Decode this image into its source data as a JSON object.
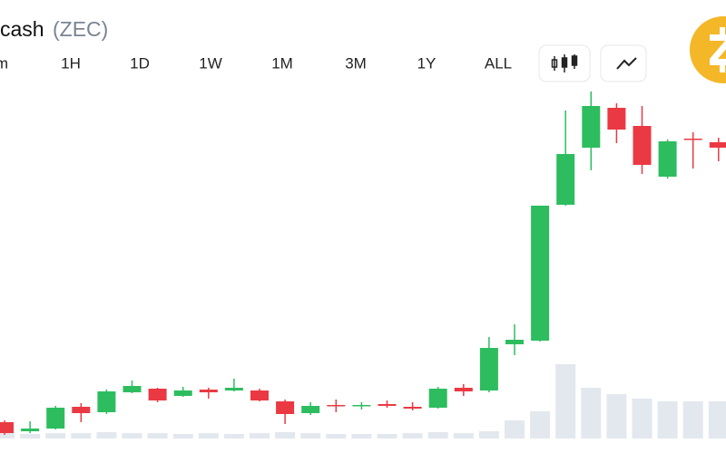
{
  "header": {
    "name": "cash",
    "symbol": "(ZEC)"
  },
  "timeframes": [
    "m",
    "1H",
    "1D",
    "1W",
    "1M",
    "3M",
    "1Y",
    "ALL"
  ],
  "active_timeframe": "1M",
  "chart_data": {
    "type": "candlestick",
    "up_color": "#2dbd5f",
    "down_color": "#ea3943",
    "volume_color": "#e3e8ef",
    "open": [
      14,
      4,
      7,
      31,
      25,
      47,
      51,
      43,
      50,
      49,
      49,
      37,
      24,
      33,
      32,
      34,
      31,
      30,
      52,
      49,
      100,
      104,
      254,
      317,
      361,
      341,
      285,
      327,
      323
    ],
    "high": [
      16,
      15,
      32,
      35,
      50,
      60,
      52,
      53,
      52,
      62,
      51,
      39,
      36,
      39,
      36,
      38,
      36,
      53,
      56,
      108,
      122,
      253,
      358,
      379,
      366,
      363,
      326,
      334,
      328
    ],
    "low": [
      0,
      2,
      6,
      14,
      23,
      46,
      36,
      42,
      40,
      48,
      37,
      12,
      22,
      25,
      28,
      30,
      27,
      29,
      43,
      47,
      88,
      103,
      253,
      292,
      322,
      288,
      283,
      294,
      302
    ],
    "close": [
      2,
      7,
      30,
      24,
      48,
      54,
      38,
      49,
      47,
      52,
      38,
      23,
      32,
      32,
      33,
      32,
      29,
      51,
      48,
      96,
      105,
      253,
      310,
      363,
      337,
      298,
      324,
      326,
      317
    ],
    "volume": [
      6,
      5,
      6,
      6,
      7,
      6,
      6,
      5,
      6,
      5,
      6,
      7,
      6,
      5,
      5,
      5,
      6,
      7,
      6,
      8,
      20,
      30,
      82,
      56,
      49,
      44,
      41,
      41,
      41
    ]
  }
}
